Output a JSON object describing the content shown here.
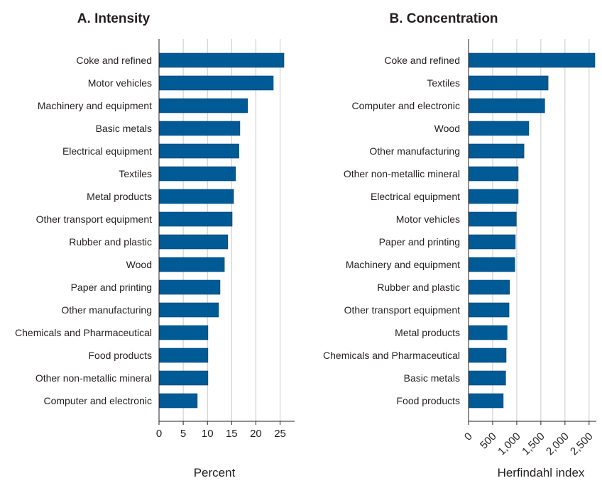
{
  "chart_data": [
    {
      "type": "bar",
      "orientation": "horizontal",
      "title": "A. Intensity",
      "xlabel": "Percent",
      "xlim": [
        0,
        28
      ],
      "xticks": [
        0,
        5,
        10,
        15,
        20,
        25
      ],
      "xtick_labels": [
        "0",
        "5",
        "10",
        "15",
        "20",
        "25"
      ],
      "grid": true,
      "bar_color": "#005a96",
      "categories": [
        "Coke and refined",
        "Motor vehicles",
        "Machinery and equipment",
        "Basic metals",
        "Electrical equipment",
        "Textiles",
        "Metal products",
        "Other transport equipment",
        "Rubber and plastic",
        "Wood",
        "Paper and printing",
        "Other manufacturing",
        "Chemicals and Pharmaceutical",
        "Food products",
        "Other non-metallic mineral",
        "Computer and electronic"
      ],
      "values": [
        25.8,
        23.6,
        18.3,
        16.7,
        16.5,
        15.8,
        15.4,
        15.1,
        14.2,
        13.5,
        12.6,
        12.3,
        10.1,
        10.1,
        10.1,
        7.9
      ]
    },
    {
      "type": "bar",
      "orientation": "horizontal",
      "title": "B. Concentration",
      "xlabel": "Herfindahl index",
      "xlim": [
        0,
        2650
      ],
      "xticks": [
        0,
        500,
        1000,
        1500,
        2000,
        2500
      ],
      "xtick_labels": [
        "0",
        "500",
        "1,000",
        "1,500",
        "2,000",
        "2,500"
      ],
      "grid": true,
      "bar_color": "#005a96",
      "categories": [
        "Coke and refined",
        "Textiles",
        "Computer and electronic",
        "Wood",
        "Other manufacturing",
        "Other non-metallic mineral",
        "Electrical equipment",
        "Motor vehicles",
        "Paper and printing",
        "Machinery and equipment",
        "Rubber and plastic",
        "Other transport equipment",
        "Metal products",
        "Chemicals and Pharmaceutical",
        "Basic metals",
        "Food products"
      ],
      "values": [
        2620,
        1650,
        1580,
        1250,
        1150,
        1030,
        1030,
        990,
        970,
        960,
        850,
        840,
        800,
        780,
        770,
        720
      ]
    }
  ]
}
